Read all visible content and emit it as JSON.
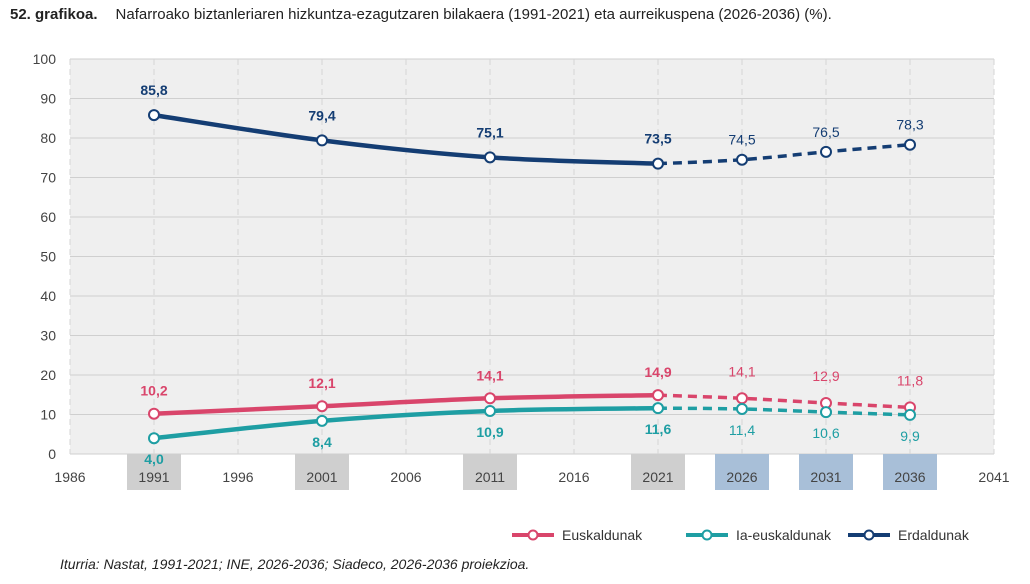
{
  "title": {
    "number": "52. grafikoa.",
    "text": "Nafarroako biztanleriaren hizkuntza-ezagutzaren bilakaera (1991-2021) eta aurreikuspena (2026-2036) (%)."
  },
  "source": "Iturria: Nastat, 1991-2021; INE, 2026-2036; Siadeco, 2026-2036 proiekzioa.",
  "chart_data": {
    "type": "line",
    "x": [
      1991,
      2001,
      2011,
      2021,
      2026,
      2031,
      2036
    ],
    "x_ticks": [
      "1986",
      "1991",
      "1996",
      "2001",
      "2006",
      "2011",
      "2016",
      "2021",
      "2026",
      "2031",
      "2036",
      "2041"
    ],
    "xlim": [
      1986,
      2041
    ],
    "ylim": [
      0,
      100
    ],
    "y_ticks": [
      "0",
      "10",
      "20",
      "30",
      "40",
      "50",
      "60",
      "70",
      "80",
      "90",
      "100"
    ],
    "grid": true,
    "legend_position": "bottom-right",
    "observed_years": [
      1991,
      2001,
      2011,
      2021
    ],
    "projected_years": [
      2026,
      2031,
      2036
    ],
    "series": [
      {
        "name": "Euskaldunak",
        "color": "#d9456b",
        "values": [
          10.2,
          12.1,
          14.1,
          14.9,
          14.1,
          12.9,
          11.8
        ],
        "labels": [
          "10,2",
          "12,1",
          "14,1",
          "14,9",
          "14,1",
          "12,9",
          "11,8"
        ]
      },
      {
        "name": "Ia-euskaldunak",
        "color": "#1e9ea3",
        "values": [
          4.0,
          8.4,
          10.9,
          11.6,
          11.4,
          10.6,
          9.9
        ],
        "labels": [
          "4,0",
          "8,4",
          "10,9",
          "11,6",
          "11,4",
          "10,6",
          "9,9"
        ]
      },
      {
        "name": "Erdaldunak",
        "color": "#143d73",
        "values": [
          85.8,
          79.4,
          75.1,
          73.5,
          74.5,
          76.5,
          78.3
        ],
        "labels": [
          "85,8",
          "79,4",
          "75,1",
          "73,5",
          "74,5",
          "76,5",
          "78,3"
        ]
      }
    ]
  }
}
